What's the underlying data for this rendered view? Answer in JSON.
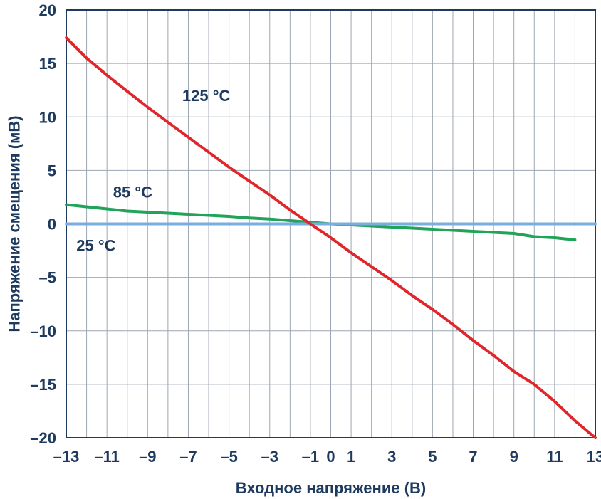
{
  "chart_data": {
    "type": "line",
    "xlabel": "Входное напряжение (В)",
    "ylabel": "Напряжение смещения (мВ)",
    "xlim": [
      -13,
      13
    ],
    "ylim": [
      -20,
      20
    ],
    "x_ticks": [
      "–13",
      "–11",
      "–9",
      "–7",
      "–5",
      "–3",
      "–1",
      "0",
      "1",
      "3",
      "5",
      "7",
      "9",
      "11",
      "13"
    ],
    "x_tick_values": [
      -13,
      -11,
      -9,
      -7,
      -5,
      -3,
      -1,
      0,
      1,
      3,
      5,
      7,
      9,
      11,
      13
    ],
    "y_ticks": [
      "20",
      "15",
      "10",
      "5",
      "0",
      "–5",
      "–10",
      "–15",
      "–20"
    ],
    "y_tick_values": [
      20,
      15,
      10,
      5,
      0,
      -5,
      -10,
      -15,
      -20
    ],
    "grid": true,
    "series": [
      {
        "name": "125 °C",
        "color": "#e0262a",
        "x": [
          -13,
          -12,
          -11,
          -10,
          -9,
          -8,
          -7,
          -6,
          -5,
          -4,
          -3,
          -2,
          -1,
          0,
          1,
          2,
          3,
          4,
          5,
          6,
          7,
          8,
          9,
          10,
          11,
          12,
          13
        ],
        "y": [
          17.4,
          15.5,
          13.9,
          12.4,
          10.9,
          9.5,
          8.1,
          6.7,
          5.3,
          4.0,
          2.7,
          1.3,
          0.0,
          -1.3,
          -2.7,
          -4.0,
          -5.3,
          -6.7,
          -8.0,
          -9.4,
          -10.9,
          -12.3,
          -13.8,
          -15.0,
          -16.6,
          -18.4,
          -20.0
        ]
      },
      {
        "name": "85 °C",
        "color": "#22a35a",
        "x": [
          -13,
          -12,
          -11,
          -10,
          -9,
          -8,
          -7,
          -6,
          -5,
          -4,
          -3,
          -2,
          -1,
          0,
          1,
          2,
          3,
          4,
          5,
          6,
          7,
          8,
          9,
          10,
          11,
          12
        ],
        "y": [
          1.8,
          1.6,
          1.4,
          1.2,
          1.1,
          1.0,
          0.9,
          0.8,
          0.7,
          0.55,
          0.45,
          0.3,
          0.15,
          0.0,
          -0.1,
          -0.2,
          -0.3,
          -0.4,
          -0.5,
          -0.6,
          -0.7,
          -0.8,
          -0.9,
          -1.2,
          -1.3,
          -1.5
        ]
      },
      {
        "name": "25 °C",
        "color": "#7aaee0",
        "x": [
          -13,
          13
        ],
        "y": [
          0,
          0
        ]
      }
    ],
    "labels": [
      {
        "text": "125 °C",
        "x": -7.3,
        "y": 12
      },
      {
        "text": "85 °C",
        "x": -10.7,
        "y": 3
      },
      {
        "text": "25 °C",
        "x": -12.5,
        "y": -2
      }
    ]
  }
}
